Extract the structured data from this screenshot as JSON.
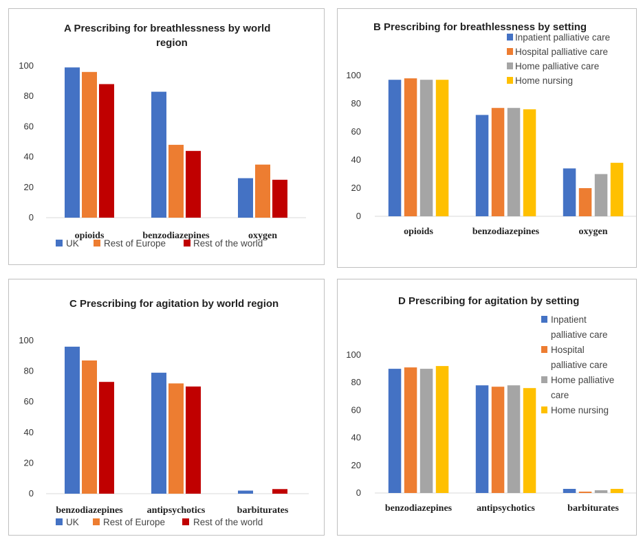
{
  "chart_data": [
    {
      "type": "bar",
      "letter": "A",
      "title": "Prescribing for breathlessness by world region",
      "categories": [
        "opioids",
        "benzodiazepines",
        "oxygen"
      ],
      "series": [
        {
          "name": "UK",
          "values": [
            99,
            83,
            26
          ]
        },
        {
          "name": "Rest of Europe",
          "values": [
            96,
            48,
            35
          ]
        },
        {
          "name": "Rest of the world",
          "values": [
            88,
            44,
            25
          ]
        }
      ],
      "yticks": [
        "0",
        "20",
        "40",
        "60",
        "80",
        "100"
      ],
      "ylim": [
        0,
        100
      ],
      "grid": false,
      "legend": "bottom"
    },
    {
      "type": "bar",
      "letter": "B",
      "title": "Prescribing for breathlessness by setting",
      "categories": [
        "opioids",
        "benzodiazepines",
        "oxygen"
      ],
      "series": [
        {
          "name": "Inpatient palliative care",
          "values": [
            97,
            72,
            34
          ]
        },
        {
          "name": "Hospital palliative care",
          "values": [
            98,
            77,
            20
          ]
        },
        {
          "name": "Home palliative care",
          "values": [
            97,
            77,
            30
          ]
        },
        {
          "name": "Home nursing",
          "values": [
            97,
            76,
            38
          ]
        }
      ],
      "yticks": [
        "0",
        "20",
        "40",
        "60",
        "80",
        "100"
      ],
      "ylim": [
        0,
        100
      ],
      "grid": false,
      "legend": "top-right"
    },
    {
      "type": "bar",
      "letter": "C",
      "title": "Prescribing for agitation by world region",
      "categories": [
        "benzodiazepines",
        "antipsychotics",
        "barbiturates"
      ],
      "series": [
        {
          "name": "UK",
          "values": [
            96,
            79,
            2
          ]
        },
        {
          "name": "Rest of Europe",
          "values": [
            87,
            72,
            0
          ]
        },
        {
          "name": "Rest of the world",
          "values": [
            73,
            70,
            3
          ]
        }
      ],
      "yticks": [
        "0",
        "20",
        "40",
        "60",
        "80",
        "100"
      ],
      "ylim": [
        0,
        100
      ],
      "grid": false,
      "legend": "bottom"
    },
    {
      "type": "bar",
      "letter": "D",
      "title": "Prescribing for agitation by setting",
      "categories": [
        "benzodiazepines",
        "antipsychotics",
        "barbiturates"
      ],
      "series": [
        {
          "name": "Inpatient palliative care",
          "values": [
            90,
            78,
            3
          ]
        },
        {
          "name": "Hospital palliative care",
          "values": [
            91,
            77,
            1
          ]
        },
        {
          "name": "Home palliative care",
          "values": [
            90,
            78,
            2
          ]
        },
        {
          "name": "Home nursing",
          "values": [
            92,
            76,
            3
          ]
        }
      ],
      "yticks": [
        "0",
        "20",
        "40",
        "60",
        "80",
        "100"
      ],
      "ylim": [
        0,
        100
      ],
      "grid": false,
      "legend": "top-right"
    }
  ],
  "colors": {
    "UK": "#4472C4",
    "Rest of Europe": "#ED7D31",
    "Rest of the world": "#C00000",
    "Inpatient palliative care": "#4472C4",
    "Hospital palliative care": "#ED7D31",
    "Home palliative care": "#A5A5A5",
    "Home nursing": "#FFC000"
  }
}
